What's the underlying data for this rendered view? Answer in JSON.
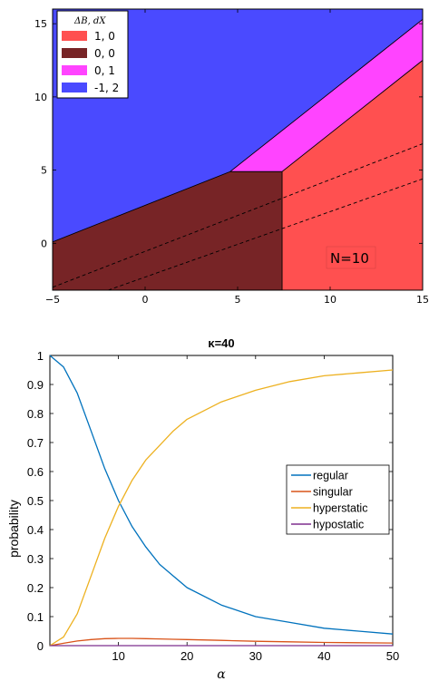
{
  "chart_data": [
    {
      "type": "area",
      "legend_title": "ΔB, dX",
      "legend_position": "top-left",
      "xlim": [
        -5,
        15
      ],
      "ylim": [
        -3.2,
        16
      ],
      "xticks": [
        -5,
        0,
        5,
        10,
        15
      ],
      "yticks": [
        0,
        5,
        10,
        15
      ],
      "regions": [
        {
          "label": "1, 0",
          "color": "#ff5050",
          "points": [
            [
              7.4,
              -3.2
            ],
            [
              15,
              -3.2
            ],
            [
              15,
              12.5
            ],
            [
              7.4,
              4.9
            ]
          ]
        },
        {
          "label": "0, 0",
          "color": "#772426",
          "points": [
            [
              -5,
              -3.2
            ],
            [
              7.4,
              -3.2
            ],
            [
              7.4,
              4.9
            ],
            [
              4.6,
              4.9
            ],
            [
              -5,
              0.1
            ]
          ]
        },
        {
          "label": "0, 1",
          "color": "#ff44ff",
          "points": [
            [
              4.6,
              4.9
            ],
            [
              7.4,
              4.9
            ],
            [
              15,
              12.5
            ],
            [
              15,
              15.3
            ]
          ]
        },
        {
          "label": "-1, 2",
          "color": "#4a4aff",
          "points": [
            [
              -5,
              16
            ],
            [
              15,
              16
            ],
            [
              15,
              15.3
            ],
            [
              4.6,
              4.9
            ],
            [
              -5,
              0.1
            ]
          ]
        }
      ],
      "dashed_lines": [
        [
          [
            -5,
            -3.0
          ],
          [
            15,
            6.8
          ]
        ],
        [
          [
            -2.0,
            -3.2
          ],
          [
            15,
            4.4
          ]
        ]
      ],
      "annotation": "N=10"
    },
    {
      "type": "line",
      "title": "κ=40",
      "xlabel": "α",
      "ylabel": "probability",
      "xlim": [
        0,
        50
      ],
      "ylim": [
        0,
        1
      ],
      "xticks": [
        10,
        20,
        30,
        40,
        50
      ],
      "yticks": [
        0,
        0.1,
        0.2,
        0.3,
        0.4,
        0.5,
        0.6,
        0.7,
        0.8,
        0.9,
        1
      ],
      "legend_position": "right",
      "x": [
        0,
        2,
        4,
        6,
        8,
        10,
        12,
        14,
        16,
        18,
        20,
        25,
        30,
        35,
        40,
        45,
        50
      ],
      "series": [
        {
          "name": "regular",
          "color": "#0072bd",
          "values": [
            1.0,
            0.96,
            0.87,
            0.74,
            0.61,
            0.5,
            0.41,
            0.34,
            0.28,
            0.24,
            0.2,
            0.14,
            0.1,
            0.08,
            0.06,
            0.05,
            0.04
          ]
        },
        {
          "name": "singular",
          "color": "#d95319",
          "values": [
            0.0,
            0.008,
            0.016,
            0.021,
            0.024,
            0.025,
            0.025,
            0.024,
            0.023,
            0.022,
            0.021,
            0.018,
            0.015,
            0.013,
            0.011,
            0.01,
            0.009
          ]
        },
        {
          "name": "hyperstatic",
          "color": "#edb120",
          "values": [
            0.0,
            0.03,
            0.11,
            0.24,
            0.37,
            0.48,
            0.57,
            0.64,
            0.69,
            0.74,
            0.78,
            0.84,
            0.88,
            0.91,
            0.93,
            0.94,
            0.95
          ]
        },
        {
          "name": "hypostatic",
          "color": "#7e2f8e",
          "values": [
            0,
            0,
            0,
            0,
            0,
            0,
            0,
            0,
            0,
            0,
            0,
            0,
            0,
            0,
            0,
            0,
            0
          ]
        }
      ]
    }
  ]
}
